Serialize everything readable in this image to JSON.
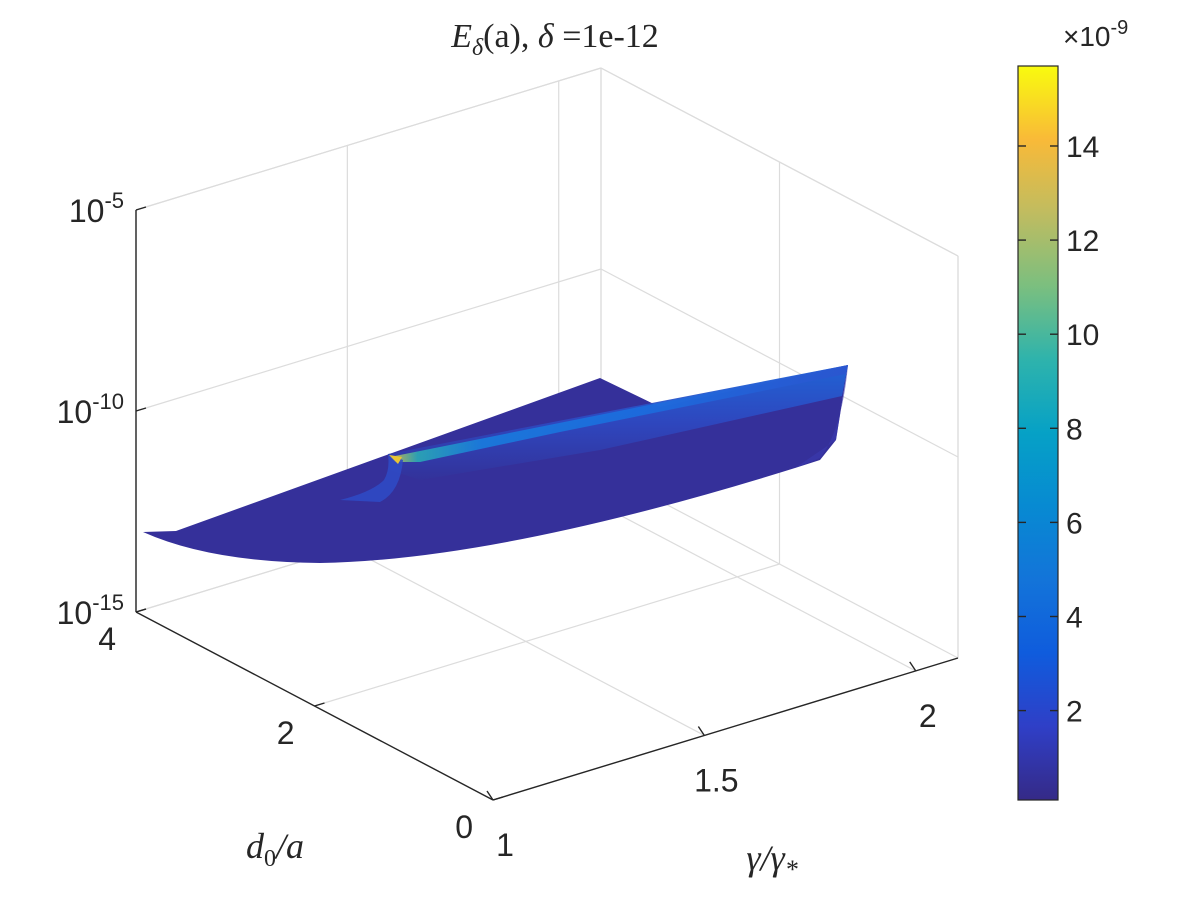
{
  "chart_data": {
    "type": "surface3d",
    "title": {
      "main": "E",
      "main_sub": "δ",
      "arg": "(a), ",
      "delta_sym": "δ",
      "eq_value": " =1e-12"
    },
    "x_axis": {
      "label_main": "γ/γ",
      "label_sub": "*",
      "ticks": [
        {
          "value": 1,
          "label": "1"
        },
        {
          "value": 1.5,
          "label": "1.5"
        },
        {
          "value": 2,
          "label": "2"
        }
      ],
      "range": [
        1,
        2.1
      ]
    },
    "y_axis": {
      "label_main": "d",
      "label_sub": "0",
      "label_rest": "/a",
      "ticks": [
        {
          "value": 0,
          "label": "0"
        },
        {
          "value": 2,
          "label": "2"
        },
        {
          "value": 4,
          "label": "4"
        }
      ],
      "range": [
        0,
        4
      ]
    },
    "z_axis": {
      "scale": "log",
      "ticks": [
        {
          "value": 1e-15,
          "base": "10",
          "exp": "-15"
        },
        {
          "value": 1e-10,
          "base": "10",
          "exp": "-10"
        },
        {
          "value": 1e-05,
          "base": "10",
          "exp": "-5"
        }
      ],
      "range": [
        1e-15,
        1e-05
      ]
    },
    "colorbar": {
      "multiplier_prefix": "×10",
      "multiplier_exp": "-9",
      "ticks": [
        {
          "value": 2,
          "label": "2"
        },
        {
          "value": 4,
          "label": "4"
        },
        {
          "value": 6,
          "label": "6"
        },
        {
          "value": 8,
          "label": "8"
        },
        {
          "value": 10,
          "label": "10"
        },
        {
          "value": 12,
          "label": "12"
        },
        {
          "value": 14,
          "label": "14"
        }
      ],
      "range": [
        0.1,
        15.7
      ],
      "colormap": "parula"
    },
    "surface": {
      "description_values": {
        "peak_z": 1.57e-08,
        "peak_at": {
          "x": 1.25,
          "y": 3.4
        },
        "typical_z": 1e-12
      }
    },
    "grid": true,
    "box": "open 3D axes"
  }
}
